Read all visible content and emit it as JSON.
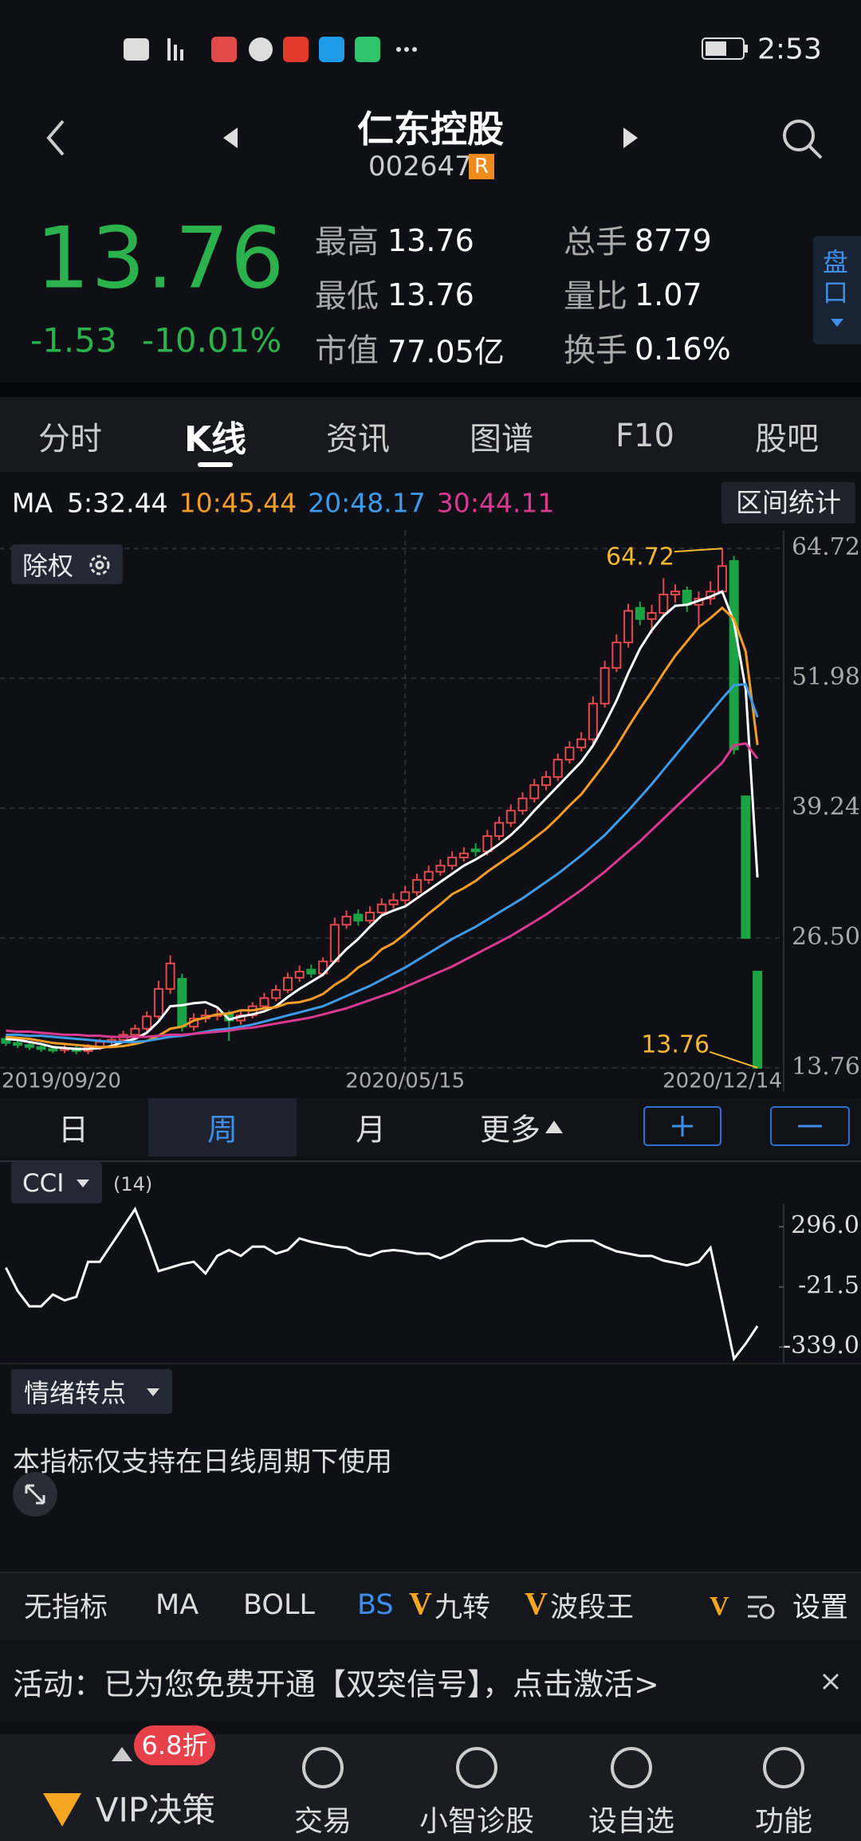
{
  "status_bar": {
    "time": "2:53"
  },
  "header": {
    "name": "仁东控股",
    "code": "002647",
    "badge": "R"
  },
  "quote": {
    "price": "13.76",
    "change": "-1.53",
    "change_pct": "-10.01%",
    "stats": [
      {
        "label": "最高",
        "value": "13.76"
      },
      {
        "label": "最低",
        "value": "13.76"
      },
      {
        "label": "市值",
        "value": "77.05亿"
      },
      {
        "label": "总手",
        "value": "8779"
      },
      {
        "label": "量比",
        "value": "1.07"
      },
      {
        "label": "换手",
        "value": "0.16%"
      }
    ],
    "side_tab": "盘口"
  },
  "tabs": [
    "分时",
    "K线",
    "资讯",
    "图谱",
    "F10",
    "股吧"
  ],
  "ma_label": "MA",
  "range_stat": "区间统计",
  "adjust": "除权",
  "periods": [
    "日",
    "周",
    "月",
    "更多"
  ],
  "chart_data": [
    {
      "type": "candlestick",
      "categories": [
        "2019/09/20",
        null,
        null,
        null,
        null,
        null,
        null,
        null,
        null,
        null,
        null,
        null,
        null,
        null,
        null,
        null,
        null,
        null,
        null,
        null,
        null,
        null,
        null,
        null,
        null,
        null,
        null,
        null,
        null,
        null,
        null,
        null,
        null,
        null,
        "2020/05/15",
        null,
        null,
        null,
        null,
        null,
        null,
        null,
        null,
        null,
        null,
        null,
        null,
        null,
        null,
        null,
        null,
        null,
        null,
        null,
        null,
        null,
        null,
        null,
        null,
        null,
        null,
        null,
        null,
        null,
        "2020/12/14"
      ],
      "open": [
        16.6,
        16.2,
        16.0,
        15.8,
        15.6,
        15.5,
        15.7,
        15.4,
        15.8,
        16.3,
        16.5,
        17.0,
        17.6,
        18.8,
        21.5,
        22.5,
        17.8,
        18.6,
        18.9,
        19.0,
        18.4,
        18.9,
        19.8,
        20.6,
        21.4,
        22.6,
        23.4,
        23.0,
        24.2,
        27.8,
        28.8,
        28.2,
        29.0,
        29.8,
        30.2,
        31.0,
        32.2,
        33.0,
        33.6,
        34.4,
        35.2,
        35.0,
        36.5,
        37.8,
        39.0,
        40.2,
        41.5,
        42.3,
        44.0,
        45.2,
        46.0,
        49.5,
        53.0,
        55.5,
        58.9,
        57.8,
        58.4,
        60.2,
        60.6,
        59.2,
        59.8,
        60.5,
        63.5,
        40.4,
        23.2
      ],
      "close": [
        16.2,
        16.0,
        15.8,
        15.6,
        15.5,
        15.7,
        15.4,
        15.8,
        16.3,
        16.5,
        17.0,
        17.6,
        18.8,
        21.5,
        24.0,
        17.8,
        18.6,
        18.9,
        19.0,
        18.4,
        18.9,
        19.8,
        20.6,
        21.4,
        22.6,
        23.2,
        23.0,
        24.2,
        27.8,
        28.6,
        28.2,
        29.0,
        29.8,
        30.2,
        31.0,
        32.2,
        33.0,
        33.6,
        34.4,
        34.8,
        35.0,
        36.5,
        37.8,
        39.0,
        40.2,
        41.5,
        42.3,
        44.0,
        45.2,
        46.0,
        49.5,
        53.0,
        55.5,
        58.6,
        57.8,
        58.4,
        60.2,
        60.5,
        59.2,
        59.8,
        60.5,
        63.0,
        45.0,
        26.5,
        13.76
      ],
      "high": [
        16.9,
        16.5,
        16.3,
        16.1,
        15.9,
        16.0,
        15.9,
        16.1,
        16.6,
        16.9,
        17.4,
        18.0,
        19.3,
        22.3,
        24.8,
        23.0,
        19.1,
        19.5,
        19.6,
        19.4,
        19.3,
        20.2,
        21.1,
        21.9,
        23.1,
        23.8,
        23.9,
        24.6,
        28.5,
        29.2,
        29.3,
        29.6,
        30.4,
        30.9,
        31.6,
        32.8,
        33.6,
        34.2,
        35.0,
        35.4,
        35.8,
        37.1,
        38.4,
        39.6,
        40.8,
        42.1,
        42.9,
        44.6,
        45.8,
        46.7,
        50.2,
        53.7,
        56.3,
        59.3,
        59.5,
        59.2,
        61.8,
        61.2,
        61.0,
        60.5,
        61.5,
        64.72,
        64.0,
        40.4,
        23.2
      ],
      "low": [
        15.9,
        15.7,
        15.5,
        15.3,
        15.2,
        15.2,
        15.1,
        15.1,
        15.5,
        16.0,
        16.2,
        16.7,
        17.3,
        18.5,
        21.0,
        17.3,
        17.4,
        18.2,
        18.4,
        16.4,
        18.0,
        18.6,
        19.5,
        20.3,
        21.1,
        22.2,
        22.6,
        22.7,
        24.0,
        27.4,
        27.7,
        27.9,
        28.6,
        29.4,
        29.8,
        30.6,
        31.8,
        32.6,
        33.2,
        34.0,
        34.5,
        34.6,
        36.1,
        37.4,
        38.6,
        39.8,
        41.0,
        41.9,
        43.6,
        44.8,
        45.6,
        49.1,
        52.6,
        55.0,
        57.2,
        56.4,
        58.0,
        59.4,
        58.5,
        57.0,
        59.2,
        60.2,
        44.5,
        26.5,
        13.76
      ],
      "color_up": "#e5494d",
      "color_down": "#1ca346",
      "series": [
        {
          "name": "5:32.44",
          "color": "#ffffff",
          "values": [
            16.6,
            16.5,
            16.3,
            16.1,
            15.8,
            15.7,
            15.6,
            15.6,
            15.7,
            15.9,
            16.3,
            16.6,
            17.2,
            18.3,
            19.8,
            19.9,
            20.1,
            20.2,
            19.7,
            18.5,
            18.8,
            19.0,
            19.3,
            19.8,
            20.7,
            21.5,
            22.2,
            22.9,
            24.2,
            25.4,
            26.4,
            27.6,
            28.7,
            29.2,
            29.6,
            30.4,
            31.2,
            32.0,
            32.8,
            33.6,
            34.2,
            34.9,
            35.7,
            36.6,
            37.7,
            39.0,
            40.2,
            41.4,
            42.6,
            43.8,
            45.4,
            47.5,
            49.8,
            52.5,
            54.9,
            56.7,
            58.1,
            59.1,
            59.2,
            59.6,
            60.0,
            60.5,
            57.5,
            50.9,
            32.44
          ]
        },
        {
          "name": "10:45.44",
          "color": "#f39c26",
          "values": [
            16.8,
            16.7,
            16.6,
            16.4,
            16.2,
            16.1,
            16.0,
            15.9,
            15.8,
            15.8,
            15.9,
            16.1,
            16.4,
            16.9,
            17.6,
            17.8,
            18.4,
            18.7,
            19.0,
            19.1,
            19.4,
            19.4,
            19.6,
            19.7,
            20.1,
            20.2,
            20.5,
            21.0,
            21.9,
            22.6,
            23.6,
            24.3,
            25.4,
            26.0,
            26.9,
            27.9,
            28.9,
            29.8,
            30.8,
            31.4,
            32.1,
            33.0,
            33.8,
            34.6,
            35.4,
            36.3,
            37.2,
            38.3,
            39.5,
            40.6,
            42.1,
            43.6,
            45.3,
            47.2,
            49.0,
            50.7,
            52.5,
            54.2,
            55.6,
            57.0,
            57.9,
            58.9,
            57.8,
            54.6,
            45.44
          ]
        },
        {
          "name": "20:48.17",
          "color": "#3d9be9",
          "values": [
            17.0,
            17.0,
            16.9,
            16.9,
            16.8,
            16.7,
            16.6,
            16.5,
            16.4,
            16.3,
            16.3,
            16.3,
            16.4,
            16.6,
            16.8,
            16.9,
            17.1,
            17.3,
            17.5,
            17.6,
            17.8,
            18.0,
            18.3,
            18.6,
            18.9,
            19.2,
            19.5,
            19.8,
            20.3,
            20.8,
            21.3,
            21.8,
            22.4,
            23.0,
            23.6,
            24.3,
            25.0,
            25.7,
            26.4,
            27.0,
            27.6,
            28.3,
            29.0,
            29.7,
            30.4,
            31.2,
            32.0,
            32.8,
            33.7,
            34.6,
            35.6,
            36.6,
            37.8,
            39.0,
            40.3,
            41.6,
            43.0,
            44.4,
            45.8,
            47.2,
            48.6,
            50.0,
            51.3,
            51.4,
            48.17
          ]
        },
        {
          "name": "30:44.11",
          "color": "#d9398f",
          "values": [
            17.4,
            17.3,
            17.3,
            17.2,
            17.1,
            17.0,
            17.0,
            16.9,
            16.9,
            16.8,
            16.8,
            16.8,
            16.8,
            16.9,
            17.0,
            17.0,
            17.1,
            17.2,
            17.3,
            17.4,
            17.6,
            17.7,
            17.9,
            18.1,
            18.3,
            18.5,
            18.7,
            19.0,
            19.3,
            19.6,
            20.0,
            20.4,
            20.8,
            21.2,
            21.7,
            22.2,
            22.7,
            23.2,
            23.7,
            24.3,
            24.9,
            25.5,
            26.1,
            26.7,
            27.4,
            28.1,
            28.8,
            29.6,
            30.4,
            31.2,
            32.1,
            33.0,
            34.0,
            35.0,
            36.0,
            37.1,
            38.2,
            39.3,
            40.4,
            41.5,
            42.6,
            43.7,
            45.4,
            45.6,
            44.11
          ]
        }
      ],
      "annotations": [
        {
          "value": 64.72,
          "color": "#f5b82e"
        },
        {
          "value": 13.76,
          "color": "#f5b82e"
        }
      ],
      "ylim": [
        11.4,
        66.46
      ],
      "yticks": [
        64.72,
        51.98,
        39.24,
        {
          "value": 26.5,
          "label": "26.50"
        },
        13.76
      ],
      "grid": true
    },
    {
      "type": "line",
      "title": "CCI",
      "subtitle": "(14)",
      "series": [
        {
          "color": "#ffffff",
          "values": [
            80,
            -43,
            -124,
            -124,
            -62,
            -93,
            -74,
            111,
            111,
            203,
            296,
            389,
            234,
            62,
            80,
            99,
            111,
            49,
            142,
            173,
            142,
            191,
            191,
            154,
            173,
            234,
            216,
            203,
            191,
            185,
            154,
            142,
            166,
            173,
            166,
            154,
            154,
            129,
            154,
            191,
            216,
            222,
            222,
            222,
            234,
            203,
            191,
            216,
            222,
            222,
            222,
            191,
            166,
            154,
            142,
            142,
            117,
            105,
            92,
            111,
            185,
            -105,
            -401,
            -321,
            -228
          ]
        }
      ],
      "ylim": [
        -414,
        419
      ],
      "yticks": [
        {
          "value": 296,
          "label": "296.0"
        },
        {
          "value": -21.5,
          "label": "-21.5"
        },
        {
          "value": -339,
          "label": "-339.0"
        }
      ]
    }
  ],
  "signal": {
    "button": "情绪转点",
    "note": "本指标仅支持在日线周期下使用"
  },
  "indicators": [
    "无指标",
    "MA",
    "BOLL",
    "BS",
    "九转",
    "波段王"
  ],
  "settings": "设置",
  "banner": {
    "text": "活动：已为您免费开通【双突信号】，点击激活>"
  },
  "nav": [
    {
      "label": "VIP决策",
      "badge": "6.8折"
    },
    {
      "label": "交易"
    },
    {
      "label": "小智诊股"
    },
    {
      "label": "设自选"
    },
    {
      "label": "功能"
    }
  ]
}
